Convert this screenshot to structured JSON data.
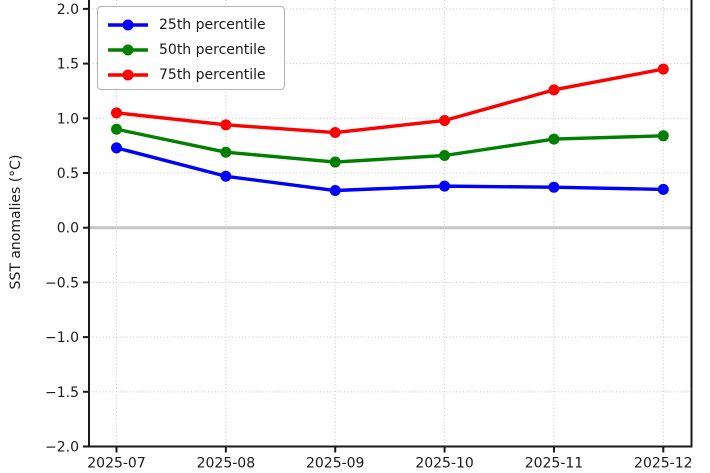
{
  "figure": {
    "background": "#ffffff",
    "text_color": "#1a1a1a",
    "spine_color": "#1a1a1a",
    "grid_color": "#c9c9c9",
    "zero_line_color": "#c6c6c6"
  },
  "chart_data": {
    "type": "line",
    "title": "",
    "xlabel": "",
    "ylabel": "SST anomalies (°C)",
    "categories": [
      "2025-07",
      "2025-08",
      "2025-09",
      "2025-10",
      "2025-11",
      "2025-12"
    ],
    "ylim": [
      -2.0,
      2.0
    ],
    "y_ticks": [
      {
        "v": 2.0,
        "label": "2.0"
      },
      {
        "v": 1.5,
        "label": "1.5"
      },
      {
        "v": 1.0,
        "label": "1.0"
      },
      {
        "v": 0.5,
        "label": "0.5"
      },
      {
        "v": 0.0,
        "label": "0.0"
      },
      {
        "v": -0.5,
        "label": "−0.5"
      },
      {
        "v": -1.0,
        "label": "−1.0"
      },
      {
        "v": -1.5,
        "label": "−1.5"
      },
      {
        "v": -2.0,
        "label": "−2.0"
      }
    ],
    "grid": {
      "visible": true,
      "style": "dotted"
    },
    "zero_line": {
      "value": 0.0
    },
    "legend": {
      "position": "upper-left"
    },
    "series": [
      {
        "name": "25th percentile",
        "color": "#0000ff",
        "values": [
          0.73,
          0.47,
          0.34,
          0.38,
          0.37,
          0.35
        ]
      },
      {
        "name": "50th percentile",
        "color": "#008000",
        "values": [
          0.9,
          0.69,
          0.6,
          0.66,
          0.81,
          0.84
        ]
      },
      {
        "name": "75th percentile",
        "color": "#ff0000",
        "values": [
          1.05,
          0.94,
          0.87,
          0.98,
          1.26,
          1.45
        ]
      }
    ]
  }
}
